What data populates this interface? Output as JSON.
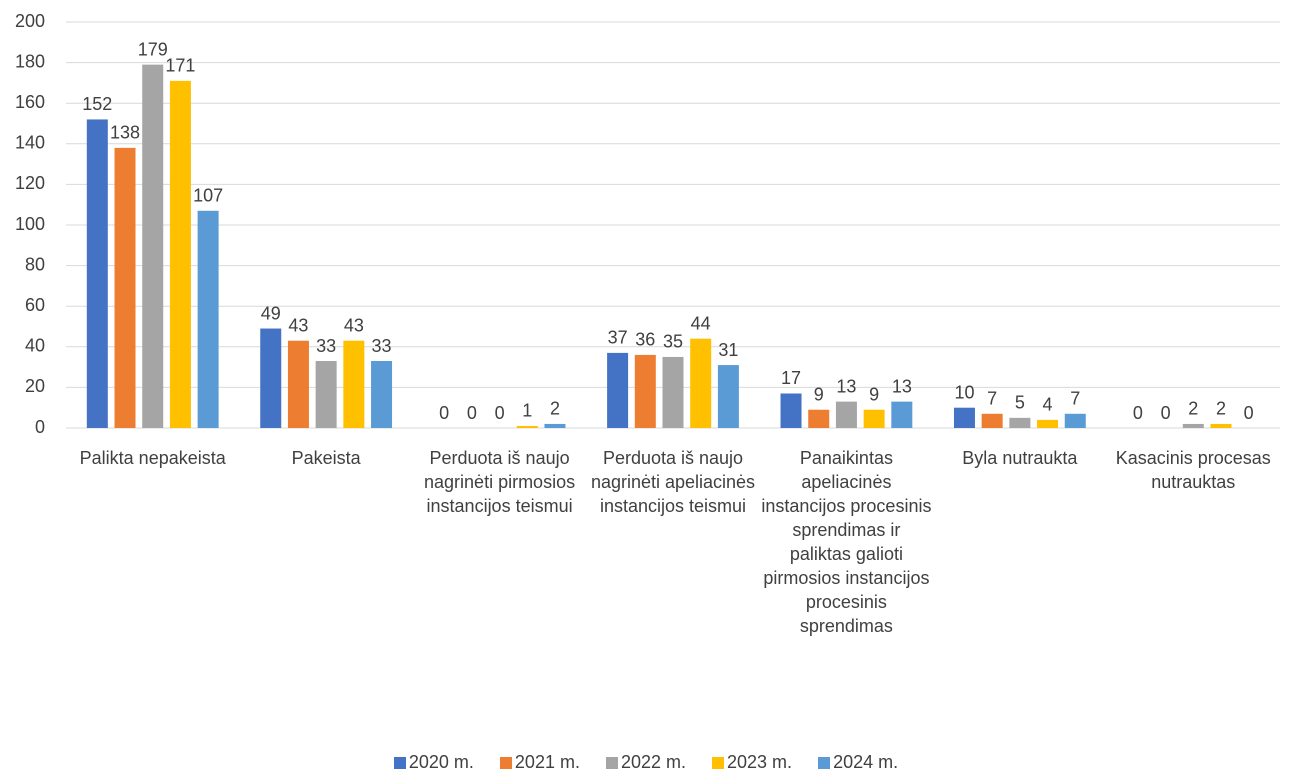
{
  "chart_data": {
    "type": "bar",
    "categories": [
      "Palikta nepakeista",
      "Pakeista",
      "Perduota iš naujo nagrinėti pirmosios instancijos teismui",
      "Perduota iš naujo nagrinėti apeliacinės instancijos teismui",
      "Panaikintas apeliacinės instancijos procesinis sprendimas ir paliktas galioti pirmosios instancijos procesinis sprendimas",
      "Byla nutraukta",
      "Kasacinis procesas nutrauktas"
    ],
    "series": [
      {
        "name": "2020 m.",
        "color": "#4472c4",
        "values": [
          152,
          49,
          0,
          37,
          17,
          10,
          0
        ]
      },
      {
        "name": "2021 m.",
        "color": "#ed7d31",
        "values": [
          138,
          43,
          0,
          36,
          9,
          7,
          0
        ]
      },
      {
        "name": "2022 m.",
        "color": "#a5a5a5",
        "values": [
          179,
          33,
          0,
          35,
          13,
          5,
          2
        ]
      },
      {
        "name": "2023 m.",
        "color": "#ffc000",
        "values": [
          171,
          43,
          1,
          44,
          9,
          4,
          2
        ]
      },
      {
        "name": "2024 m.",
        "color": "#5b9bd5",
        "values": [
          107,
          33,
          2,
          31,
          13,
          7,
          0
        ]
      }
    ],
    "ylim": [
      0,
      200
    ],
    "yticks": [
      0,
      20,
      40,
      60,
      80,
      100,
      120,
      140,
      160,
      180,
      200
    ],
    "grid": true,
    "legend": "bottom"
  }
}
